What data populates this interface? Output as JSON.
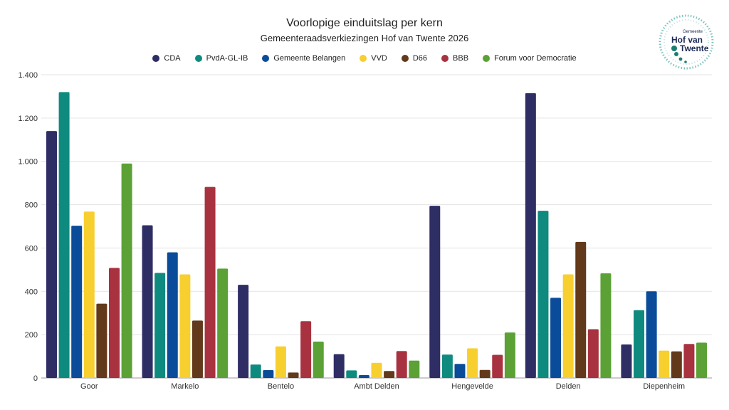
{
  "chart_data": {
    "type": "bar",
    "title": "Voorlopige einduitslag per kern",
    "subtitle": "Gemeenteraadsverkiezingen Hof van Twente 2026",
    "xlabel": "",
    "ylabel": "",
    "ylim": [
      0,
      1400
    ],
    "yticks": [
      0,
      200,
      400,
      600,
      800,
      1000,
      1200,
      1400
    ],
    "ytick_labels": [
      "0",
      "200",
      "400",
      "600",
      "800",
      "1.000",
      "1.200",
      "1.400"
    ],
    "grid": true,
    "legend_position": "top-center",
    "categories": [
      "Goor",
      "Markelo",
      "Bentelo",
      "Ambt Delden",
      "Hengevelde",
      "Delden",
      "Diepenheim"
    ],
    "series": [
      {
        "name": "CDA",
        "color": "#2e2d64",
        "values": [
          1140,
          705,
          430,
          110,
          795,
          1315,
          155
        ]
      },
      {
        "name": "PvdA-GL-IB",
        "color": "#0f8a7f",
        "values": [
          1320,
          485,
          62,
          35,
          108,
          772,
          313
        ]
      },
      {
        "name": "Gemeente Belangen",
        "color": "#0a4c99",
        "values": [
          703,
          580,
          36,
          13,
          65,
          370,
          400
        ]
      },
      {
        "name": "VVD",
        "color": "#f7cf2f",
        "values": [
          768,
          478,
          146,
          70,
          137,
          478,
          126
        ]
      },
      {
        "name": "D66",
        "color": "#62391a",
        "values": [
          343,
          265,
          25,
          32,
          37,
          628,
          123
        ]
      },
      {
        "name": "BBB",
        "color": "#a8323f",
        "values": [
          508,
          882,
          262,
          124,
          107,
          225,
          157
        ]
      },
      {
        "name": "Forum voor Democratie",
        "color": "#5ba136",
        "values": [
          990,
          505,
          168,
          80,
          210,
          483,
          163
        ]
      }
    ]
  },
  "logo": {
    "small_text": "Gemeente",
    "line1": "Hof van",
    "line2": "Twente",
    "color": "#1c7d74"
  }
}
